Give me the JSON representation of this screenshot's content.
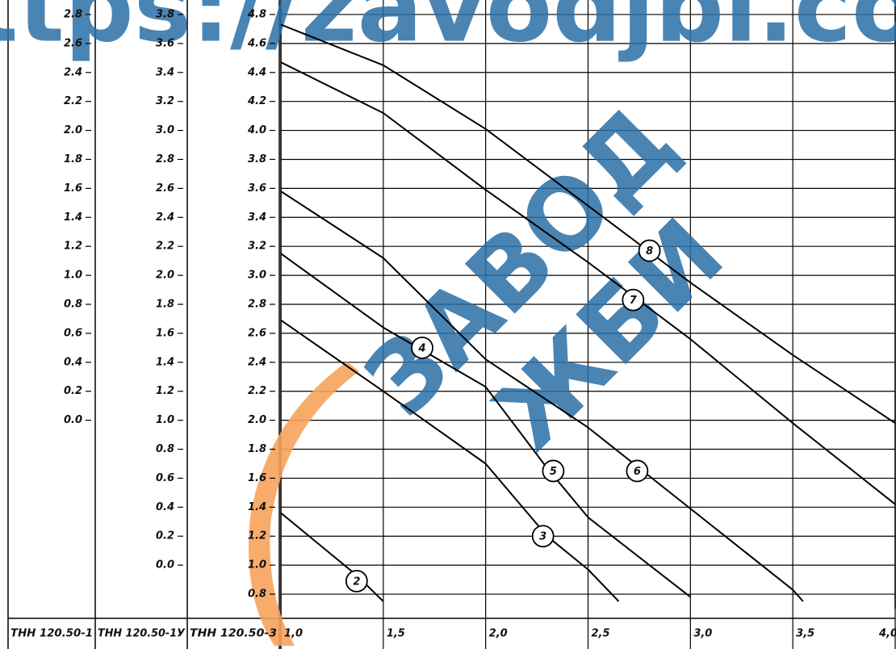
{
  "chart_data": {
    "type": "line",
    "watermark": {
      "url": "https://zavodjbi.com/",
      "words": [
        "ЗАВОД",
        "ЖБИ"
      ]
    },
    "axes": [
      {
        "title": "ТНН 120.50-1",
        "ylim": [
          -1.3,
          2.9
        ],
        "yticks": [
          {
            "value": 2.8,
            "label": "2.8"
          },
          {
            "value": 2.6,
            "label": "2.6"
          },
          {
            "value": 2.4,
            "label": "2.4"
          },
          {
            "value": 2.2,
            "label": "2.2"
          },
          {
            "value": 2,
            "label": "2.0"
          },
          {
            "value": 1.8,
            "label": "1.8"
          },
          {
            "value": 1.6,
            "label": "1.6"
          },
          {
            "value": 1.4,
            "label": "1.4"
          },
          {
            "value": 1.2,
            "label": "1.2"
          },
          {
            "value": 1,
            "label": "1.0"
          },
          {
            "value": 0.8,
            "label": "0.8"
          },
          {
            "value": 0.6,
            "label": "0.6"
          },
          {
            "value": 0.4,
            "label": "0.4"
          },
          {
            "value": 0.2,
            "label": "0.2"
          },
          {
            "value": 0,
            "label": "0.0"
          }
        ]
      },
      {
        "title": "ТНН 120.50-1У",
        "ylim": [
          -0.3,
          3.9
        ],
        "yticks": [
          {
            "value": 3.8,
            "label": "3.8"
          },
          {
            "value": 3.6,
            "label": "3.6"
          },
          {
            "value": 3.4,
            "label": "3.4"
          },
          {
            "value": 3.2,
            "label": "3.2"
          },
          {
            "value": 3,
            "label": "3.0"
          },
          {
            "value": 2.8,
            "label": "2.8"
          },
          {
            "value": 2.6,
            "label": "2.6"
          },
          {
            "value": 2.4,
            "label": "2.4"
          },
          {
            "value": 2.2,
            "label": "2.2"
          },
          {
            "value": 2,
            "label": "2.0"
          },
          {
            "value": 1.8,
            "label": "1.8"
          },
          {
            "value": 1.6,
            "label": "1.6"
          },
          {
            "value": 1.4,
            "label": "1.4"
          },
          {
            "value": 1.2,
            "label": "1.2"
          },
          {
            "value": 1,
            "label": "1.0"
          },
          {
            "value": 0.8,
            "label": "0.8"
          },
          {
            "value": 0.6,
            "label": "0.6"
          },
          {
            "value": 0.4,
            "label": "0.4"
          },
          {
            "value": 0.2,
            "label": "0.2"
          },
          {
            "value": 0,
            "label": "0.0"
          }
        ]
      },
      {
        "title": "ТНН 120.50-3",
        "ylim": [
          0.7,
          4.9
        ],
        "yticks": [
          {
            "value": 4.8,
            "label": "4.8"
          },
          {
            "value": 4.6,
            "label": "4.6"
          },
          {
            "value": 4.4,
            "label": "4.4"
          },
          {
            "value": 4.2,
            "label": "4.2"
          },
          {
            "value": 4,
            "label": "4.0"
          },
          {
            "value": 3.8,
            "label": "3.8"
          },
          {
            "value": 3.6,
            "label": "3.6"
          },
          {
            "value": 3.4,
            "label": "3.4"
          },
          {
            "value": 3.2,
            "label": "3.2"
          },
          {
            "value": 3,
            "label": "3.0"
          },
          {
            "value": 2.8,
            "label": "2.8"
          },
          {
            "value": 2.6,
            "label": "2.6"
          },
          {
            "value": 2.4,
            "label": "2.4"
          },
          {
            "value": 2.2,
            "label": "2.2"
          },
          {
            "value": 2,
            "label": "2.0"
          },
          {
            "value": 1.8,
            "label": "1.8"
          },
          {
            "value": 1.6,
            "label": "1.6"
          },
          {
            "value": 1.4,
            "label": "1.4"
          },
          {
            "value": 1.2,
            "label": "1.2"
          },
          {
            "value": 1,
            "label": "1.0"
          },
          {
            "value": 0.8,
            "label": "0.8"
          }
        ]
      }
    ],
    "xlim": [
      1,
      4
    ],
    "xticks": [
      {
        "value": 1,
        "label": "1,0"
      },
      {
        "value": 1.5,
        "label": "1,5"
      },
      {
        "value": 2,
        "label": "2,0"
      },
      {
        "value": 2.5,
        "label": "2,5"
      },
      {
        "value": 3,
        "label": "3,0"
      },
      {
        "value": 3.5,
        "label": "3,5"
      },
      {
        "value": 4,
        "label": "4,0"
      }
    ],
    "grid": true,
    "color": "#000000",
    "series": [
      {
        "x": [
          1,
          1.5,
          2,
          2.5,
          3,
          3.5,
          4
        ],
        "values": [
          4.73,
          4.45,
          4.01,
          3.48,
          2.95,
          2.45,
          1.98
        ]
      },
      {
        "x": [
          1,
          1.5,
          2,
          2.5,
          3,
          3.5,
          4
        ],
        "values": [
          4.47,
          4.12,
          3.59,
          3.09,
          2.56,
          1.98,
          1.42
        ]
      },
      {
        "x": [
          1,
          1.5,
          2,
          2.5,
          3,
          3.5,
          3.55
        ],
        "values": [
          3.58,
          3.12,
          2.42,
          1.95,
          1.39,
          0.83,
          0.75
        ]
      },
      {
        "x": [
          1,
          1.5,
          2,
          2.3,
          2.5,
          3
        ],
        "values": [
          3.15,
          2.64,
          2.23,
          1.67,
          1.33,
          0.78
        ]
      },
      {
        "x": [
          1,
          1.5,
          2,
          2.3,
          2.5,
          2.65
        ],
        "values": [
          2.69,
          2.2,
          1.7,
          1.2,
          0.97,
          0.75
        ]
      },
      {
        "x": [
          1,
          1.37,
          1.5
        ],
        "values": [
          1.36,
          0.93,
          0.75
        ]
      }
    ],
    "labels": [
      {
        "text": "8",
        "x": 2.8,
        "y": 3.17
      },
      {
        "text": "7",
        "x": 2.72,
        "y": 2.83
      },
      {
        "text": "4",
        "x": 1.69,
        "y": 2.5
      },
      {
        "text": "5",
        "x": 2.33,
        "y": 1.65
      },
      {
        "text": "6",
        "x": 2.74,
        "y": 1.65
      },
      {
        "text": "3",
        "x": 2.28,
        "y": 1.2
      },
      {
        "text": "2",
        "x": 1.37,
        "y": 0.89
      }
    ]
  }
}
